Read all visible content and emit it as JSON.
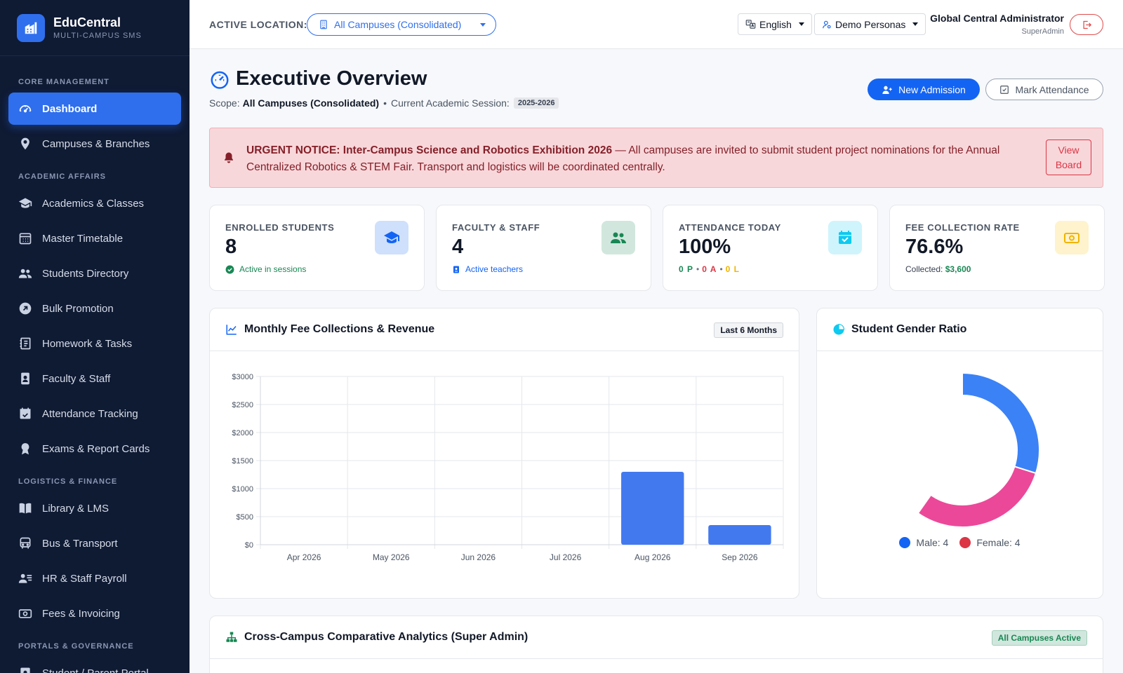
{
  "brand": {
    "name": "EduCentral",
    "subtitle": "MULTI-CAMPUS SMS"
  },
  "sidebar": {
    "sections": [
      "CORE MANAGEMENT",
      "ACADEMIC AFFAIRS",
      "LOGISTICS & FINANCE",
      "PORTALS & GOVERNANCE"
    ],
    "items": [
      {
        "label": "Dashboard",
        "icon": "dashboard-gauge-icon",
        "active": true
      },
      {
        "label": "Campuses & Branches",
        "icon": "map-pin-icon"
      },
      {
        "label": "Academics & Classes",
        "icon": "graduation-cap-icon"
      },
      {
        "label": "Master Timetable",
        "icon": "calendar-grid-icon"
      },
      {
        "label": "Students Directory",
        "icon": "people-icon"
      },
      {
        "label": "Bulk Promotion",
        "icon": "arrow-up-right-circle-icon"
      },
      {
        "label": "Homework & Tasks",
        "icon": "journal-icon"
      },
      {
        "label": "Faculty & Staff",
        "icon": "id-badge-icon"
      },
      {
        "label": "Attendance Tracking",
        "icon": "calendar-check-icon"
      },
      {
        "label": "Exams & Report Cards",
        "icon": "award-icon"
      },
      {
        "label": "Library & LMS",
        "icon": "book-icon"
      },
      {
        "label": "Bus & Transport",
        "icon": "bus-icon"
      },
      {
        "label": "HR & Staff Payroll",
        "icon": "person-lines-icon"
      },
      {
        "label": "Fees & Invoicing",
        "icon": "cash-icon"
      },
      {
        "label": "Student / Parent Portal",
        "icon": "person-badge-icon"
      }
    ]
  },
  "topbar": {
    "location_label": "ACTIVE LOCATION:",
    "location_value": "All Campuses (Consolidated)",
    "language": "English",
    "personas": "Demo Personas",
    "user_name": "Global Central Administrator",
    "user_role": "SuperAdmin"
  },
  "header": {
    "title": "Executive Overview",
    "scope_label": "Scope:",
    "scope_value": "All Campuses (Consolidated)",
    "session_label": "Current Academic Session:",
    "session_value": "2025-2026",
    "new_admission": "New Admission",
    "mark_attendance": "Mark Attendance"
  },
  "notice": {
    "title": "URGENT NOTICE: Inter-Campus Science and Robotics Exhibition 2026",
    "body": " — All campuses are invited to submit student project nominations for the Annual Centralized Robotics & STEM Fair. Transport and logistics will be coordinated centrally.",
    "button_line1": "View",
    "button_line2": "Board"
  },
  "stats": [
    {
      "label": "ENROLLED STUDENTS",
      "value": "8",
      "sub": "Active in sessions",
      "sub_color": "#198754",
      "icon": "graduation-cap-icon",
      "icon_bg": "#cfe0fc",
      "icon_color": "#1464f4"
    },
    {
      "label": "FACULTY & STAFF",
      "value": "4",
      "sub": "Active teachers",
      "sub_color": "#1464f4",
      "icon": "people-icon",
      "icon_bg": "#d1e7dd",
      "icon_color": "#198754"
    },
    {
      "label": "ATTENDANCE TODAY",
      "value": "100%",
      "att_p": "0 P",
      "att_a": "0 A",
      "att_l": "0 L",
      "icon": "calendar-check-icon",
      "icon_bg": "#cff4fc",
      "icon_color": "#0dcaf0"
    },
    {
      "label": "FEE COLLECTION RATE",
      "value": "76.6%",
      "sub_label": "Collected:",
      "sub_value": "$3,600",
      "icon": "cash-icon",
      "icon_bg": "#fff3cd",
      "icon_color": "#f0b400"
    }
  ],
  "fee_panel": {
    "title": "Monthly Fee Collections & Revenue",
    "tag": "Last 6 Months"
  },
  "gender_panel": {
    "title": "Student Gender Ratio",
    "male_label": "Male: 4",
    "female_label": "Female: 4"
  },
  "analytics_panel": {
    "title": "Cross-Campus Comparative Analytics (Super Admin)",
    "tag": "All Campuses Active"
  },
  "colors": {
    "accent": "#1464f4",
    "bar": "#4379ef",
    "male": "#3b82f6",
    "female": "#ec4899",
    "female_legend": "#dc3545"
  },
  "chart_data": [
    {
      "type": "bar",
      "title": "Monthly Fee Collections & Revenue",
      "categories": [
        "Apr 2026",
        "May 2026",
        "Jun 2026",
        "Jul 2026",
        "Aug 2026",
        "Sep 2026"
      ],
      "values": [
        0,
        0,
        0,
        0,
        1300,
        350
      ],
      "ylim": [
        0,
        3000
      ],
      "yticks": [
        "$0",
        "$500",
        "$1000",
        "$1500",
        "$2000",
        "$2500",
        "$3000"
      ],
      "grid": true
    },
    {
      "type": "pie",
      "title": "Student Gender Ratio",
      "categories": [
        "Male",
        "Female"
      ],
      "values": [
        4,
        4
      ]
    }
  ]
}
